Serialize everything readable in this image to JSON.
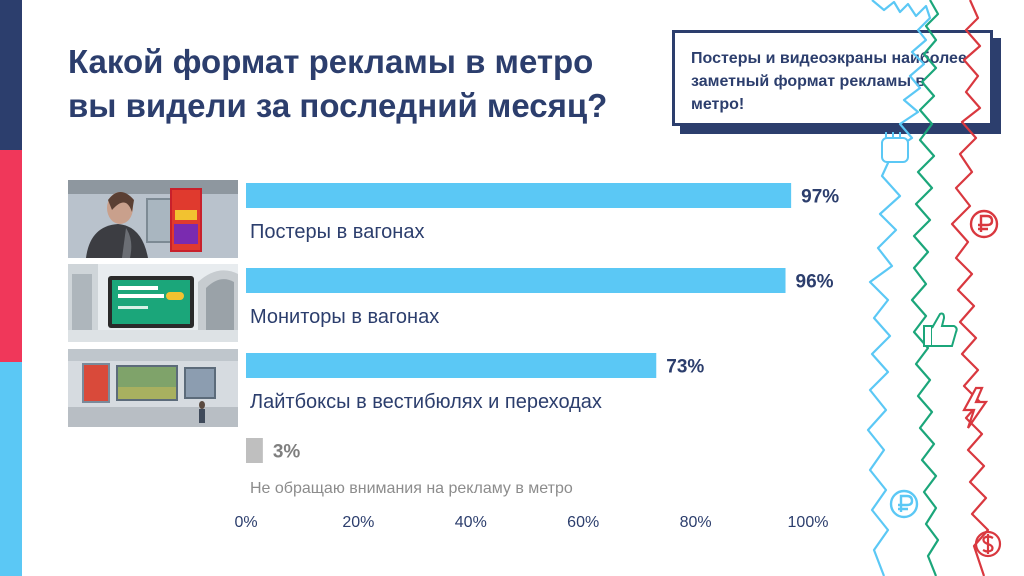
{
  "title": "Какой формат рекламы в метро вы видели за последний месяц?",
  "callout": "Постеры и видеоэкраны наиболее заметный формат рекламы в метро!",
  "colors": {
    "navy": "#2c3e6d",
    "red": "#f0375a",
    "cyan": "#5bc8f5",
    "bar": "#5bc8f5",
    "bar_muted": "#bfbfbf",
    "green": "#1ba67a",
    "crimson": "#d9383f"
  },
  "images": [
    {
      "name": "photo-poster-in-carriage",
      "icon": "woman-reading-poster"
    },
    {
      "name": "photo-monitor-in-carriage",
      "icon": "metro-monitor-screen"
    },
    {
      "name": "photo-lightbox-in-vestibule",
      "icon": "lightbox-wall"
    }
  ],
  "decorations": [
    "wavy-line",
    "fist-icon",
    "ruble-icon",
    "thumbs-up-icon",
    "lightning-icon",
    "dollar-icon"
  ],
  "chart_data": {
    "type": "bar",
    "orientation": "horizontal",
    "categories": [
      "Постеры в вагонах",
      "Мониторы в вагонах",
      "Лайтбоксы в вестибюлях и переходах",
      "Не обращаю внимания на рекламу в метро"
    ],
    "values": [
      97,
      96,
      73,
      3
    ],
    "data_labels": [
      "97%",
      "96%",
      "73%",
      "3%"
    ],
    "muted": [
      false,
      false,
      false,
      true
    ],
    "xlim": [
      0,
      100
    ],
    "xticks": [
      0,
      20,
      40,
      60,
      80,
      100
    ],
    "xtick_labels": [
      "0%",
      "20%",
      "40%",
      "60%",
      "80%",
      "100%"
    ],
    "grid": false,
    "legend": "none"
  }
}
